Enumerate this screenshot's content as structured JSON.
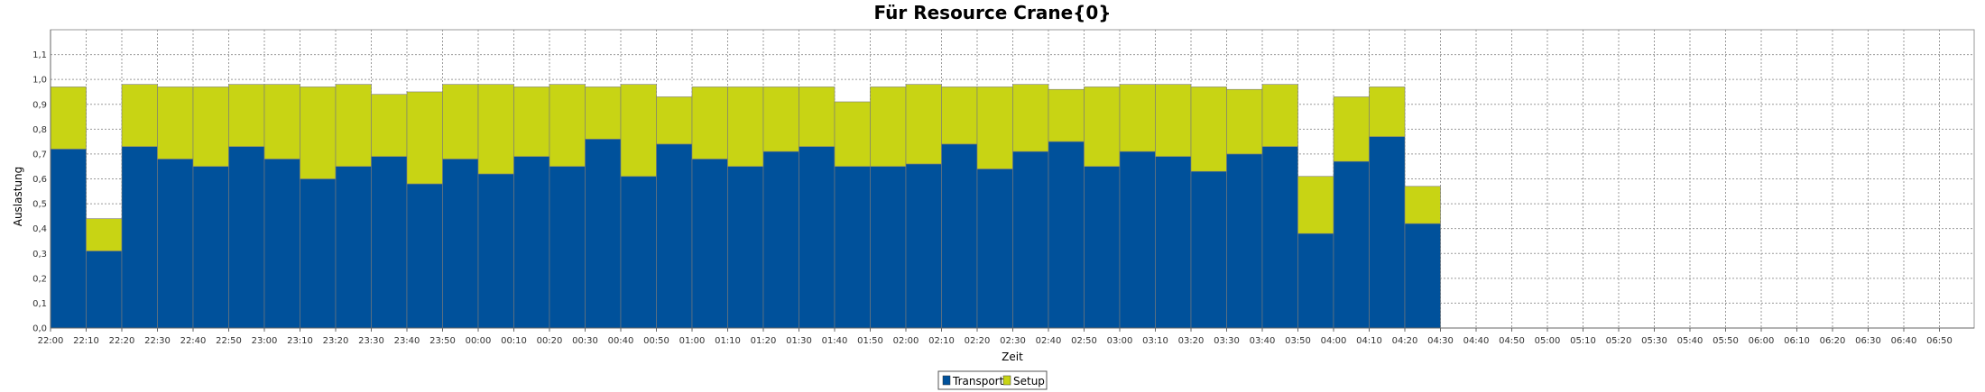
{
  "chart_data": {
    "type": "bar",
    "stacked": true,
    "title": "Für Resource Crane{0}",
    "xlabel": "Zeit",
    "ylabel": "Auslastung",
    "ylim": [
      0,
      1.2
    ],
    "y_ticks": [
      "0,0",
      "0,1",
      "0,2",
      "0,3",
      "0,4",
      "0,5",
      "0,6",
      "0,7",
      "0,8",
      "0,9",
      "1,0",
      "1,1"
    ],
    "x_ticks": [
      "22:00",
      "22:10",
      "22:20",
      "22:30",
      "22:40",
      "22:50",
      "23:00",
      "23:10",
      "23:20",
      "23:30",
      "23:40",
      "23:50",
      "00:00",
      "00:10",
      "00:20",
      "00:30",
      "00:40",
      "00:50",
      "01:00",
      "01:10",
      "01:20",
      "01:30",
      "01:40",
      "01:50",
      "02:00",
      "02:10",
      "02:20",
      "02:30",
      "02:40",
      "02:50",
      "03:00",
      "03:10",
      "03:20",
      "03:30",
      "03:40",
      "03:50",
      "04:00",
      "04:10",
      "04:20",
      "04:30",
      "04:40",
      "04:50",
      "05:00",
      "05:10",
      "05:20",
      "05:30",
      "05:40",
      "05:50",
      "06:00",
      "06:10",
      "06:20",
      "06:30",
      "06:40",
      "06:50"
    ],
    "grid": true,
    "legend": "bottom-center",
    "series": [
      {
        "name": "Transport",
        "color": "#00519B",
        "values": [
          0.72,
          0.31,
          0.73,
          0.68,
          0.65,
          0.73,
          0.68,
          0.6,
          0.65,
          0.69,
          0.58,
          0.68,
          0.62,
          0.69,
          0.65,
          0.76,
          0.61,
          0.74,
          0.68,
          0.65,
          0.71,
          0.73,
          0.65,
          0.65,
          0.66,
          0.74,
          0.64,
          0.71,
          0.75,
          0.65,
          0.71,
          0.69,
          0.63,
          0.7,
          0.73,
          0.38,
          0.67,
          0.77,
          0.42
        ]
      },
      {
        "name": "Setup",
        "color": "#C8D414",
        "values": [
          0.25,
          0.13,
          0.25,
          0.29,
          0.32,
          0.25,
          0.3,
          0.37,
          0.33,
          0.25,
          0.37,
          0.3,
          0.36,
          0.28,
          0.33,
          0.21,
          0.37,
          0.19,
          0.29,
          0.32,
          0.26,
          0.24,
          0.26,
          0.32,
          0.32,
          0.23,
          0.33,
          0.27,
          0.21,
          0.32,
          0.27,
          0.29,
          0.34,
          0.26,
          0.25,
          0.23,
          0.26,
          0.2,
          0.15
        ]
      }
    ]
  }
}
